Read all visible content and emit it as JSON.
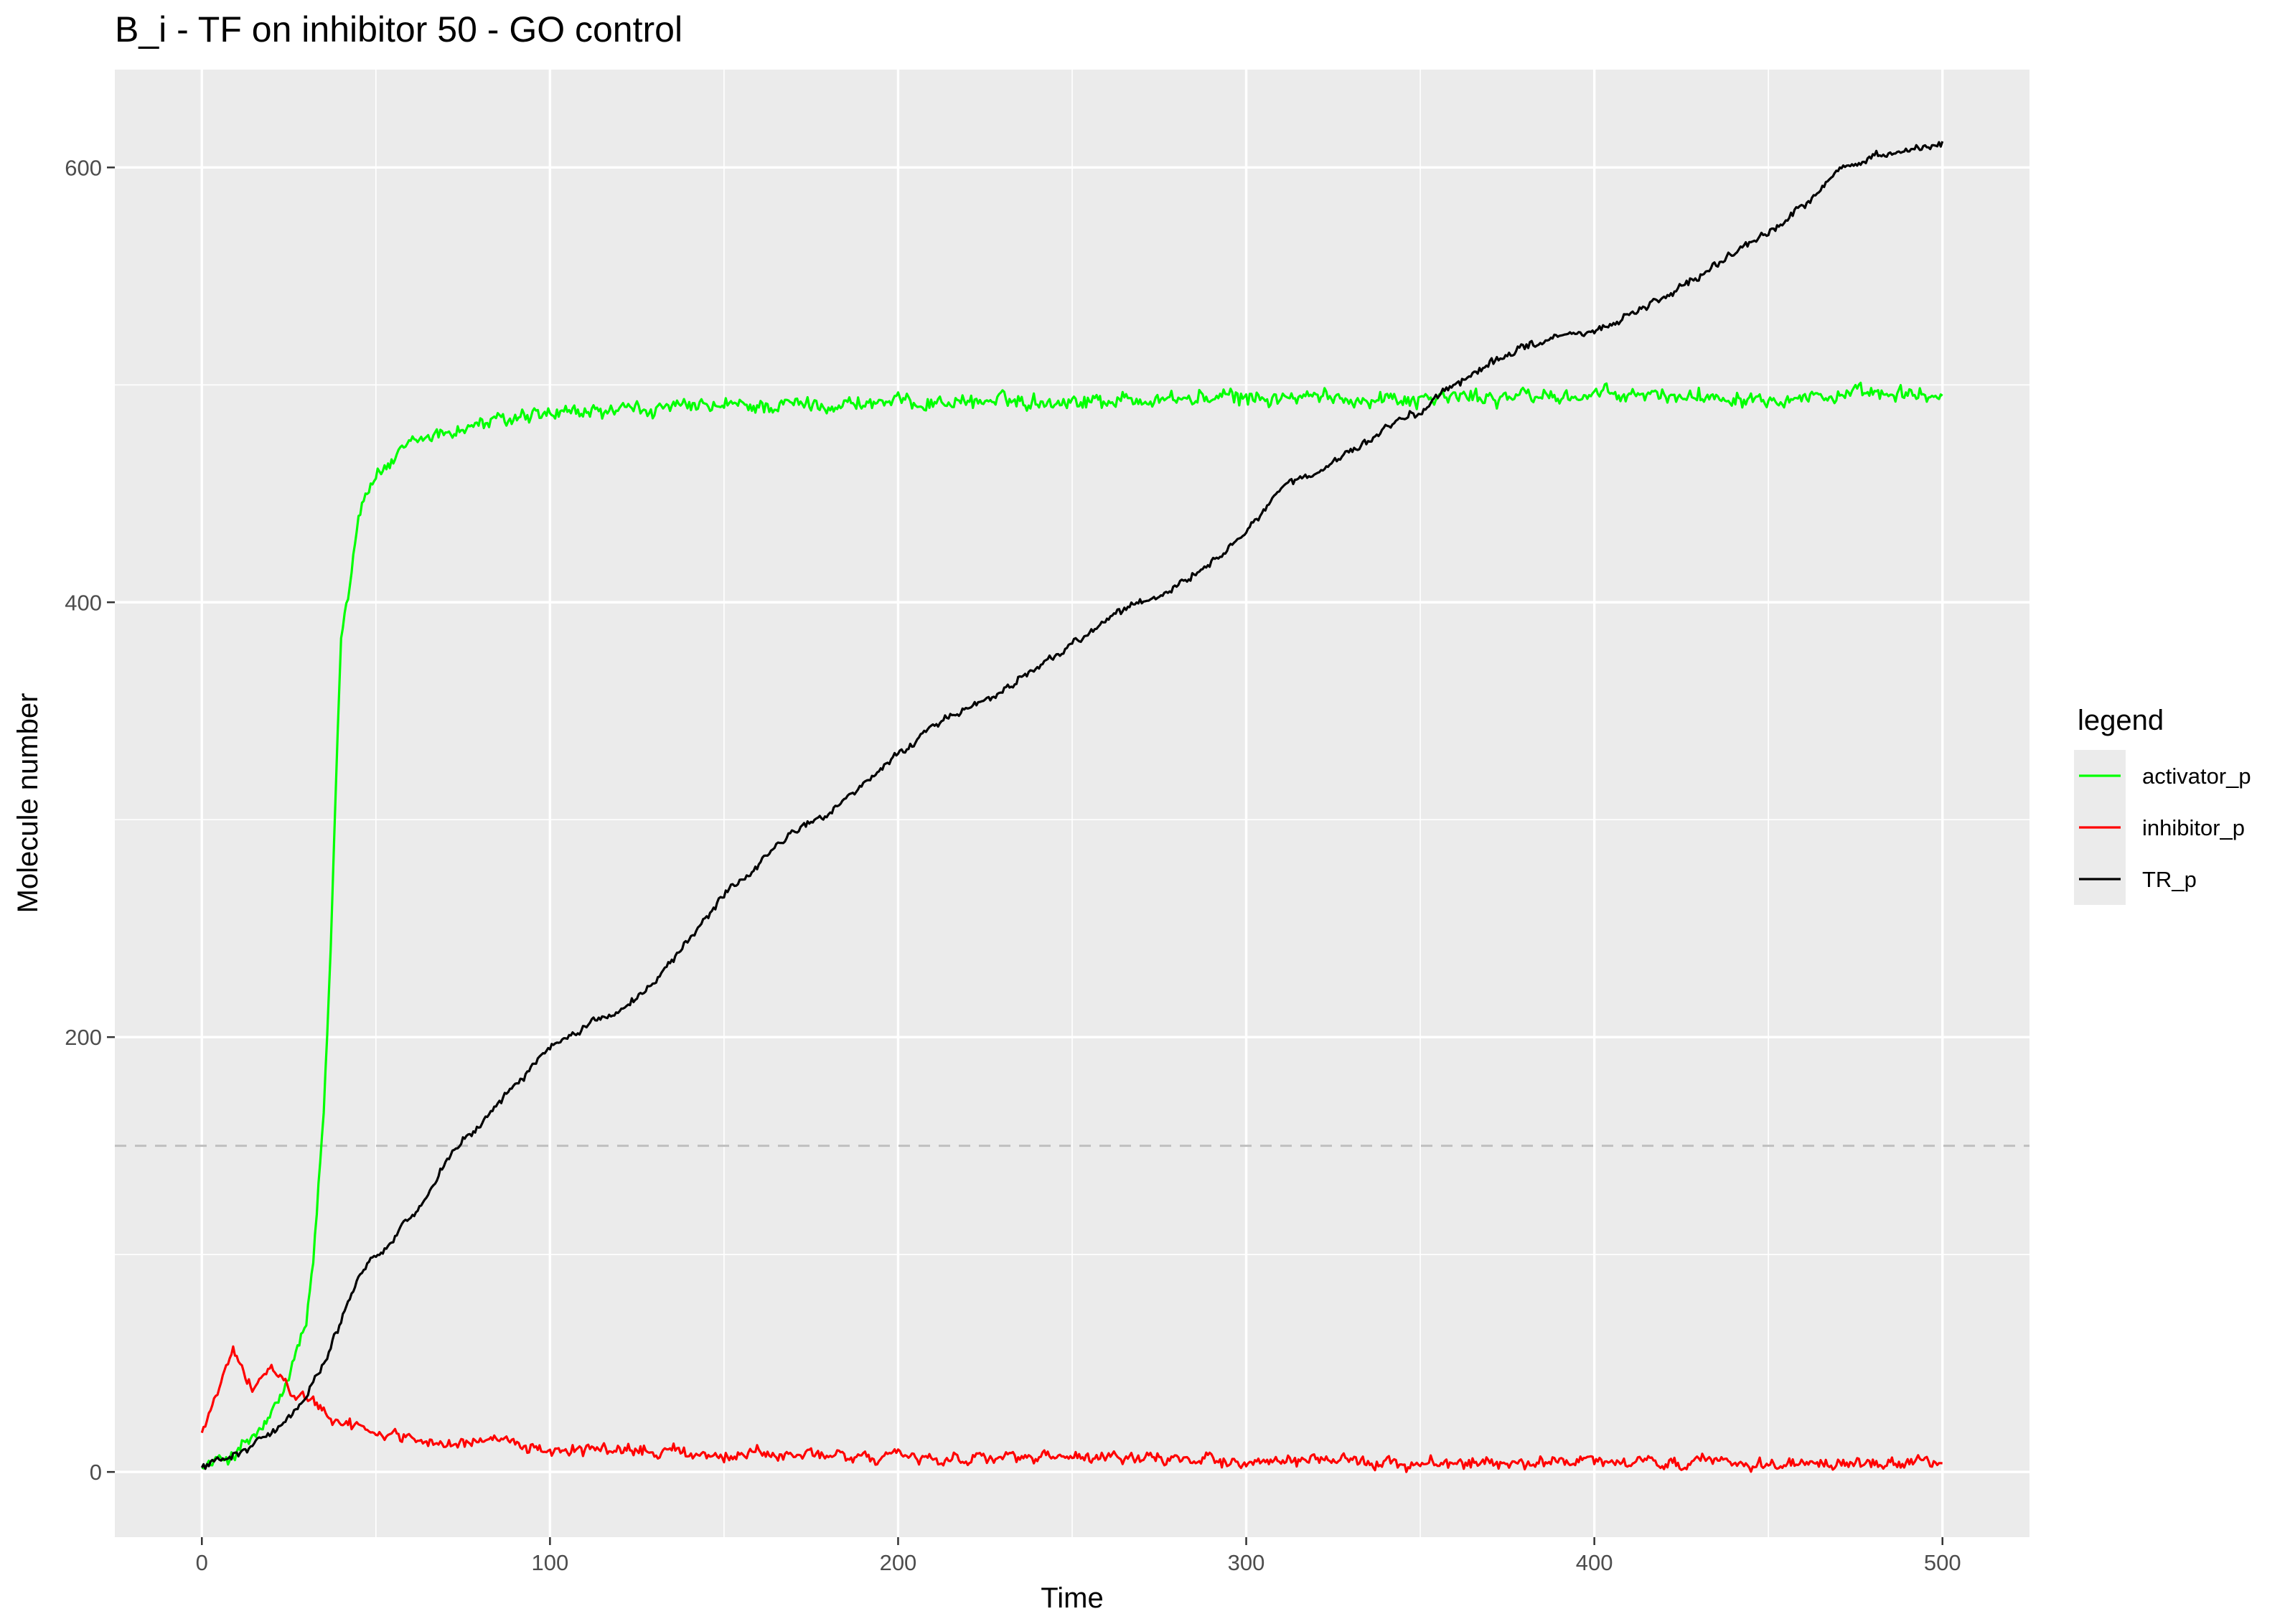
{
  "chart_data": {
    "type": "line",
    "title": "B_i - TF on inhibitor 50 - GO control",
    "xlabel": "Time",
    "ylabel": "Molecule number",
    "xlim": [
      -25,
      525
    ],
    "ylim": [
      -30,
      645
    ],
    "x_ticks": [
      0,
      100,
      200,
      300,
      400,
      500
    ],
    "y_ticks": [
      0,
      200,
      400,
      600
    ],
    "x_ticks_minor": [
      50,
      150,
      250,
      350,
      450
    ],
    "y_ticks_minor": [
      100,
      300,
      500
    ],
    "grid": true,
    "panel_background": "#ebebeb",
    "gridline_color": "#ffffff",
    "legend_title": "legend",
    "legend_position": "right",
    "threshold_line": {
      "y": 150,
      "style": "dashed",
      "color": "#bfbfbf"
    },
    "series": [
      {
        "name": "activator_p",
        "color": "#00ff00",
        "points": [
          [
            0,
            2
          ],
          [
            5,
            5
          ],
          [
            10,
            9
          ],
          [
            15,
            16
          ],
          [
            20,
            25
          ],
          [
            23,
            35
          ],
          [
            26,
            48
          ],
          [
            28,
            60
          ],
          [
            30,
            68
          ],
          [
            32,
            95
          ],
          [
            34,
            140
          ],
          [
            35,
            165
          ],
          [
            36,
            200
          ],
          [
            37,
            240
          ],
          [
            38,
            290
          ],
          [
            39,
            340
          ],
          [
            40,
            385
          ],
          [
            42,
            405
          ],
          [
            44,
            430
          ],
          [
            46,
            448
          ],
          [
            50,
            458
          ],
          [
            55,
            465
          ],
          [
            60,
            472
          ],
          [
            65,
            476
          ],
          [
            70,
            478
          ],
          [
            75,
            480
          ],
          [
            80,
            482
          ],
          [
            90,
            484
          ],
          [
            100,
            486
          ],
          [
            120,
            488
          ],
          [
            150,
            490
          ],
          [
            200,
            492
          ],
          [
            250,
            493
          ],
          [
            300,
            494
          ],
          [
            350,
            494
          ],
          [
            400,
            495
          ],
          [
            450,
            495
          ],
          [
            500,
            495
          ]
        ],
        "noise": 4
      },
      {
        "name": "inhibitor_p",
        "color": "#ff0000",
        "points": [
          [
            0,
            18
          ],
          [
            3,
            30
          ],
          [
            6,
            46
          ],
          [
            9,
            55
          ],
          [
            11,
            50
          ],
          [
            13,
            40
          ],
          [
            15,
            38
          ],
          [
            18,
            46
          ],
          [
            20,
            48
          ],
          [
            22,
            44
          ],
          [
            25,
            38
          ],
          [
            30,
            33
          ],
          [
            35,
            28
          ],
          [
            40,
            24
          ],
          [
            45,
            20
          ],
          [
            50,
            18
          ],
          [
            60,
            16
          ],
          [
            70,
            14
          ],
          [
            80,
            13
          ],
          [
            100,
            11
          ],
          [
            120,
            10
          ],
          [
            150,
            8
          ],
          [
            200,
            7
          ],
          [
            250,
            6
          ],
          [
            300,
            5
          ],
          [
            350,
            4.5
          ],
          [
            400,
            4
          ],
          [
            450,
            4
          ],
          [
            500,
            4
          ]
        ],
        "noise": 3
      },
      {
        "name": "TR_p",
        "color": "#000000",
        "points": [
          [
            0,
            2
          ],
          [
            10,
            8
          ],
          [
            20,
            18
          ],
          [
            28,
            30
          ],
          [
            35,
            50
          ],
          [
            40,
            70
          ],
          [
            45,
            88
          ],
          [
            50,
            100
          ],
          [
            55,
            108
          ],
          [
            60,
            118
          ],
          [
            65,
            128
          ],
          [
            70,
            142
          ],
          [
            75,
            152
          ],
          [
            80,
            160
          ],
          [
            90,
            178
          ],
          [
            100,
            195
          ],
          [
            110,
            205
          ],
          [
            120,
            212
          ],
          [
            130,
            226
          ],
          [
            140,
            245
          ],
          [
            150,
            265
          ],
          [
            160,
            280
          ],
          [
            170,
            295
          ],
          [
            180,
            303
          ],
          [
            190,
            315
          ],
          [
            200,
            330
          ],
          [
            210,
            343
          ],
          [
            220,
            350
          ],
          [
            230,
            360
          ],
          [
            240,
            370
          ],
          [
            250,
            380
          ],
          [
            260,
            392
          ],
          [
            270,
            400
          ],
          [
            280,
            407
          ],
          [
            290,
            418
          ],
          [
            300,
            432
          ],
          [
            310,
            452
          ],
          [
            320,
            460
          ],
          [
            330,
            468
          ],
          [
            340,
            480
          ],
          [
            350,
            488
          ],
          [
            360,
            500
          ],
          [
            370,
            510
          ],
          [
            380,
            518
          ],
          [
            390,
            522
          ],
          [
            400,
            525
          ],
          [
            410,
            532
          ],
          [
            420,
            540
          ],
          [
            430,
            550
          ],
          [
            440,
            560
          ],
          [
            450,
            570
          ],
          [
            460,
            582
          ],
          [
            470,
            598
          ],
          [
            480,
            605
          ],
          [
            490,
            608
          ],
          [
            500,
            612
          ]
        ],
        "noise": 2
      }
    ]
  }
}
